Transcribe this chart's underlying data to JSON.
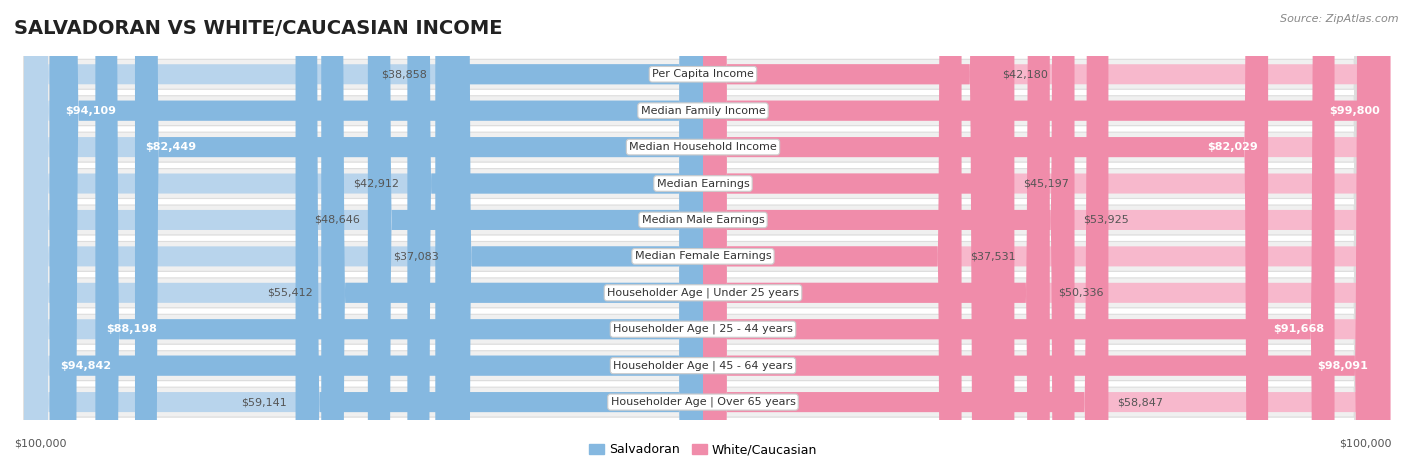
{
  "title": "SALVADORAN VS WHITE/CAUCASIAN INCOME",
  "source": "Source: ZipAtlas.com",
  "categories": [
    "Per Capita Income",
    "Median Family Income",
    "Median Household Income",
    "Median Earnings",
    "Median Male Earnings",
    "Median Female Earnings",
    "Householder Age | Under 25 years",
    "Householder Age | 25 - 44 years",
    "Householder Age | 45 - 64 years",
    "Householder Age | Over 65 years"
  ],
  "salvadoran_values": [
    38858,
    94109,
    82449,
    42912,
    48646,
    37083,
    55412,
    88198,
    94842,
    59141
  ],
  "white_values": [
    42180,
    99800,
    82029,
    45197,
    53925,
    37531,
    50336,
    91668,
    98091,
    58847
  ],
  "max_value": 100000,
  "salvadoran_color": "#85b8e0",
  "white_color": "#f08caa",
  "salvadoran_color_light": "#b8d4ec",
  "white_color_light": "#f7b8cc",
  "background_color": "#ffffff",
  "row_bg_color": "#f0f0f0",
  "legend_salvadoran": "Salvadoran",
  "legend_white": "White/Caucasian",
  "title_fontsize": 14,
  "value_fontsize": 8,
  "category_fontsize": 8,
  "legend_fontsize": 9,
  "source_fontsize": 8,
  "inside_threshold": 65000
}
